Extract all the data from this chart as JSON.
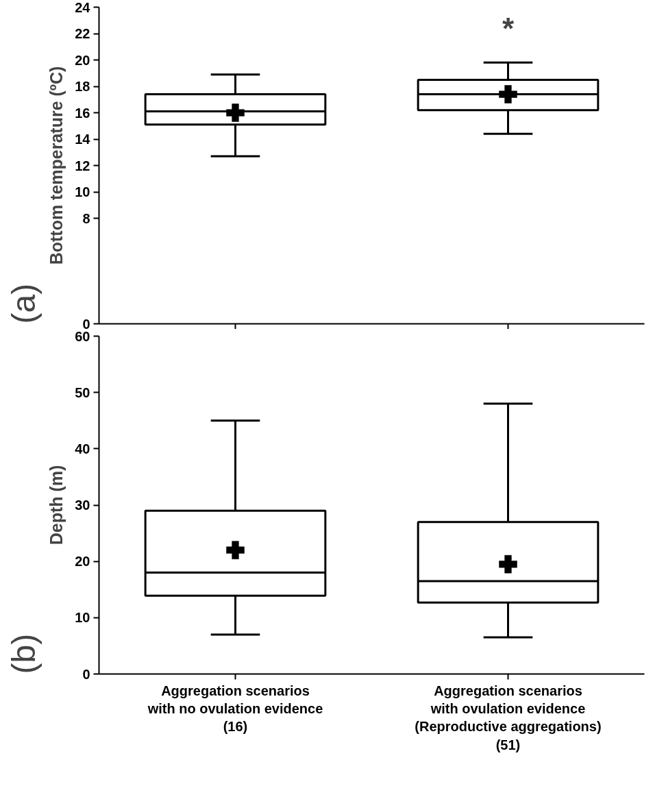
{
  "chart_data": [
    {
      "type": "box",
      "title": "(a)",
      "ylabel": "Bottom temperature (ºC)",
      "categories": [
        null,
        null
      ],
      "ylim": [
        0,
        24
      ],
      "yticks": [
        0,
        8,
        10,
        12,
        14,
        16,
        18,
        20,
        22,
        24
      ],
      "grid": false,
      "marker": "cross",
      "boxes": [
        {
          "low": 12.7,
          "q1": 15.1,
          "median": 16.1,
          "q3": 17.4,
          "high": 18.9,
          "mean": 16.0
        },
        {
          "low": 14.4,
          "q1": 16.2,
          "median": 17.4,
          "q3": 18.5,
          "high": 19.8,
          "mean": 17.4
        }
      ],
      "annotations": [
        "*"
      ]
    },
    {
      "type": "box",
      "title": "(b)",
      "ylabel": "Depth (m)",
      "categories": [
        "Aggregation scenarios\nwith no ovulation evidence\n(16)",
        "Aggregation scenarios\nwith ovulation evidence\n(Reproductive aggregations)\n(51)"
      ],
      "ylim": [
        0,
        60
      ],
      "yticks": [
        0,
        10,
        20,
        30,
        40,
        50,
        60
      ],
      "grid": false,
      "marker": "cross",
      "boxes": [
        {
          "low": 7,
          "q1": 13.9,
          "median": 18,
          "q3": 29,
          "high": 45,
          "mean": 22
        },
        {
          "low": 6.5,
          "q1": 12.7,
          "median": 16.5,
          "q3": 27,
          "high": 48,
          "mean": 19.5
        }
      ]
    }
  ]
}
